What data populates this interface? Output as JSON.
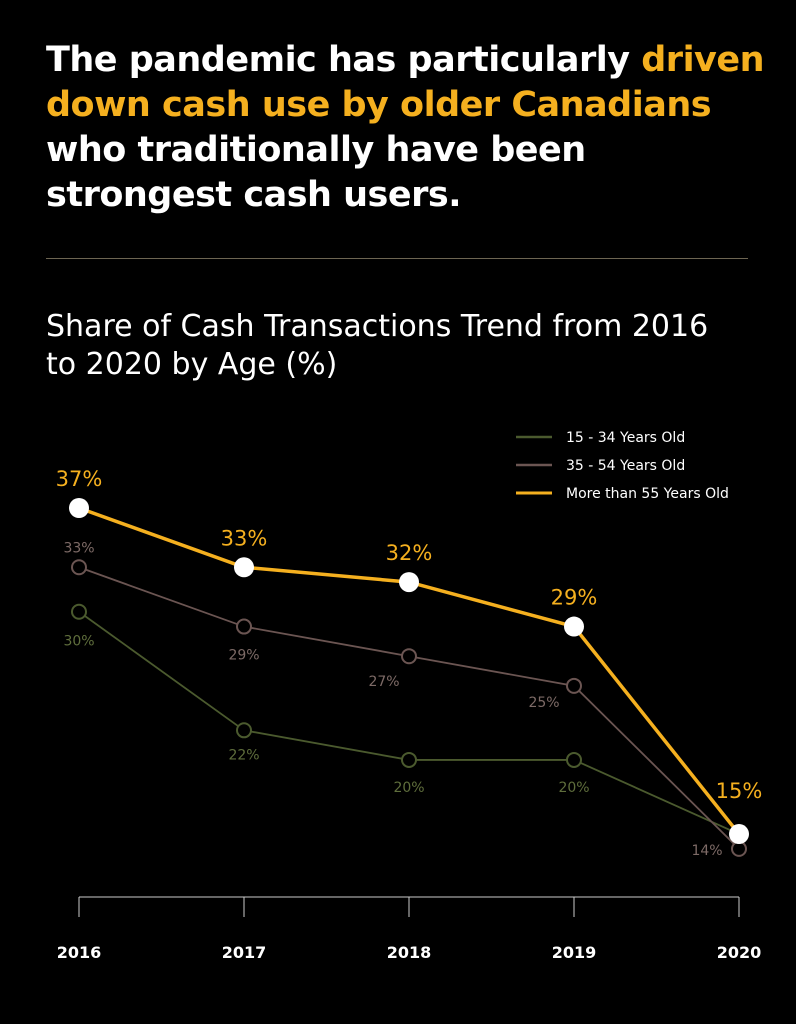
{
  "headline": {
    "part1": "The pandemic has particularly ",
    "highlight": "driven down cash use by older Canadians",
    "part2": " who traditionally have been strongest cash users."
  },
  "chart_data": {
    "type": "line",
    "title": "Share of Cash Transactions Trend from 2016 to 2020 by Age (%)",
    "categories": [
      "2016",
      "2017",
      "2018",
      "2019",
      "2020"
    ],
    "xlabel": "",
    "ylabel": "",
    "ylim": [
      0,
      40
    ],
    "legend_position": "top-right",
    "series": [
      {
        "name": "15 - 34 Years Old",
        "color": "#4b5a2e",
        "values": [
          30,
          22,
          20,
          20,
          15
        ],
        "labels": [
          "30%",
          "22%",
          "20%",
          "20%",
          null
        ]
      },
      {
        "name": "35 - 54 Years Old",
        "color": "#6b5552",
        "values": [
          33,
          29,
          27,
          25,
          14
        ],
        "labels": [
          "33%",
          "29%",
          "27%",
          "25%",
          "14%"
        ]
      },
      {
        "name": "More than 55 Years Old",
        "color": "#f5b01f",
        "values": [
          37,
          33,
          32,
          29,
          15
        ],
        "labels": [
          "37%",
          "33%",
          "32%",
          "29%",
          "15%"
        ]
      }
    ]
  }
}
